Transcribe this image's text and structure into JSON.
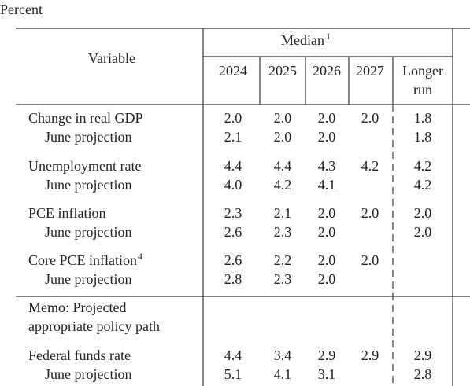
{
  "caption": "Percent",
  "table": {
    "header": {
      "variable": "Variable",
      "group": "Median",
      "group_note": "1",
      "columns": [
        "2024",
        "2025",
        "2026",
        "2027",
        [
          "Longer",
          "run"
        ]
      ]
    },
    "groups": [
      {
        "label": "Change in real GDP",
        "values": [
          "2.0",
          "2.0",
          "2.0",
          "2.0",
          "1.8"
        ],
        "june": {
          "label": "June projection",
          "values": [
            "2.1",
            "2.0",
            "2.0",
            null,
            "1.8"
          ]
        }
      },
      {
        "label": "Unemployment rate",
        "values": [
          "4.4",
          "4.4",
          "4.3",
          "4.2",
          "4.2"
        ],
        "june": {
          "label": "June projection",
          "values": [
            "4.0",
            "4.2",
            "4.1",
            null,
            "4.2"
          ]
        }
      },
      {
        "label": "PCE inflation",
        "values": [
          "2.3",
          "2.1",
          "2.0",
          "2.0",
          "2.0"
        ],
        "june": {
          "label": "June projection",
          "values": [
            "2.6",
            "2.3",
            "2.0",
            null,
            "2.0"
          ]
        }
      },
      {
        "label": "Core PCE inflation",
        "note": "4",
        "values": [
          "2.6",
          "2.2",
          "2.0",
          "2.0",
          null
        ],
        "june": {
          "label": "June projection",
          "values": [
            "2.8",
            "2.3",
            "2.0",
            null,
            null
          ]
        }
      }
    ],
    "memo": [
      "Memo: Projected",
      "appropriate policy path"
    ],
    "policy": {
      "label": "Federal funds rate",
      "values": [
        "4.4",
        "3.4",
        "2.9",
        "2.9",
        "2.9"
      ],
      "june": {
        "label": "June projection",
        "values": [
          "5.1",
          "4.1",
          "3.1",
          null,
          "2.8"
        ]
      }
    }
  }
}
